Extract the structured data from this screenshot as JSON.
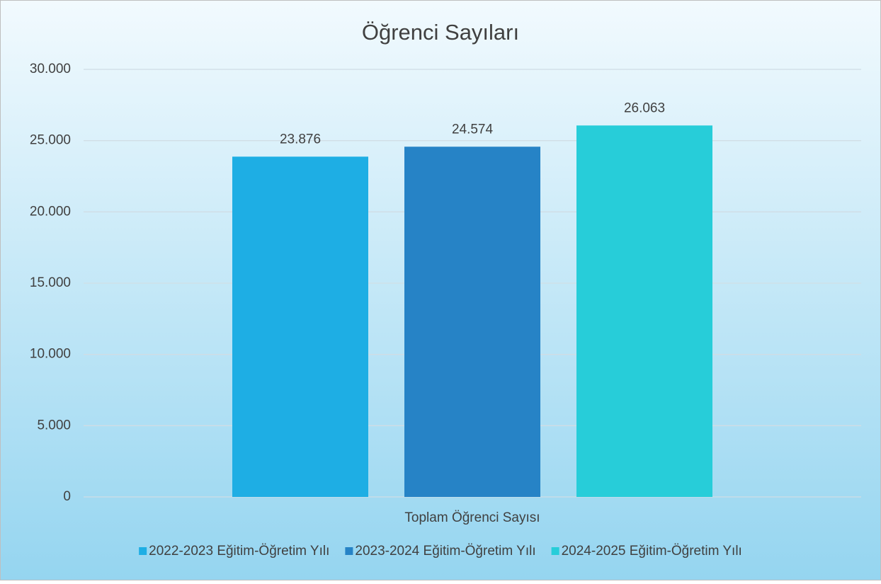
{
  "chart_data": {
    "type": "bar",
    "title": "Öğrenci Sayıları",
    "categories": [
      "Toplam Öğrenci Sayısı"
    ],
    "series": [
      {
        "name": "2022-2023 Eğitim-Öğretim Yılı",
        "color": "#1eaee4",
        "values": [
          23876
        ],
        "value_labels": [
          "23.876"
        ]
      },
      {
        "name": "2023-2024 Eğitim-Öğretim Yılı",
        "color": "#2683c6",
        "values": [
          24574
        ],
        "value_labels": [
          "24.574"
        ]
      },
      {
        "name": "2024-2025 Eğitim-Öğretim Yılı",
        "color": "#27cdd9",
        "values": [
          26063
        ],
        "value_labels": [
          "26.063"
        ]
      }
    ],
    "ylim": [
      0,
      30000
    ],
    "yticks": [
      0,
      {
        "value": 5000,
        "label": "5.000"
      },
      {
        "value": 10000,
        "label": "10.000"
      },
      {
        "value": 15000,
        "label": "15.000"
      },
      {
        "value": 20000,
        "label": "20.000"
      },
      {
        "value": 25000,
        "label": "25.000"
      },
      {
        "value": 30000,
        "label": "30.000"
      }
    ],
    "grid": true,
    "legend": "bottom"
  }
}
